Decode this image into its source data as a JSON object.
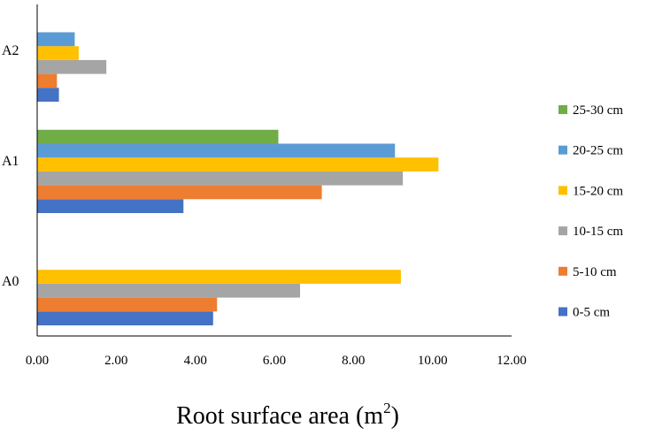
{
  "chart_data": {
    "type": "bar",
    "orientation": "horizontal",
    "categories": [
      "A0",
      "A1",
      "A2"
    ],
    "xlabel": "Root surface area (m",
    "xlabel_superscript": "2",
    "xlabel_suffix": ")",
    "xlim": [
      0,
      12
    ],
    "xticks": [
      "0.00",
      "2.00",
      "4.00",
      "6.00",
      "8.00",
      "10.00",
      "12.00"
    ],
    "legend_position": "right",
    "grid": false,
    "series": [
      {
        "name": "0-5 cm",
        "color": "#4472C4",
        "values": [
          4.45,
          3.7,
          0.55
        ]
      },
      {
        "name": "5-10 cm",
        "color": "#ED7D31",
        "values": [
          4.55,
          7.2,
          0.5
        ]
      },
      {
        "name": "10-15 cm",
        "color": "#A5A5A5",
        "values": [
          6.65,
          9.25,
          1.75
        ]
      },
      {
        "name": "15-20 cm",
        "color": "#FFC000",
        "values": [
          9.2,
          10.15,
          1.05
        ]
      },
      {
        "name": "20-25 cm",
        "color": "#5B9BD5",
        "values": [
          null,
          9.05,
          0.95
        ]
      },
      {
        "name": "25-30 cm",
        "color": "#70AD47",
        "values": [
          null,
          6.1,
          null
        ]
      }
    ]
  }
}
